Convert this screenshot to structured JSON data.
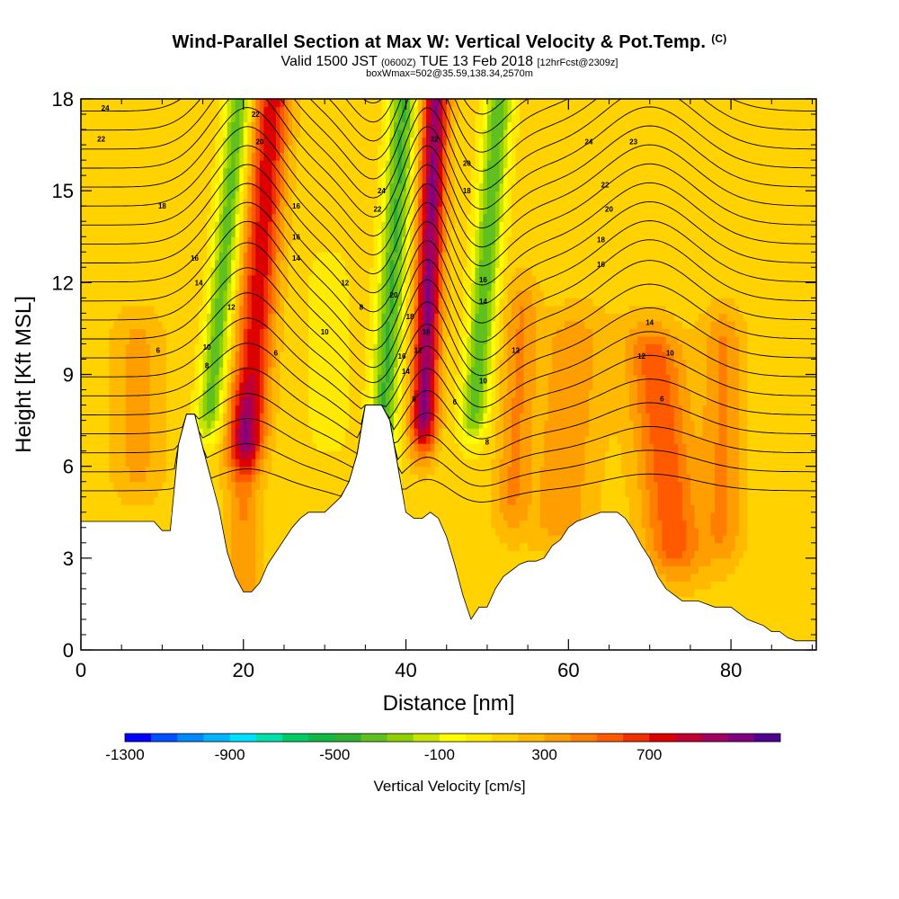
{
  "header": {
    "title_main": "Wind-Parallel Section at Max W: Vertical Velocity & Pot.Temp.",
    "title_copyright": "(C)",
    "subtitle_valid": "Valid 1500 JST",
    "subtitle_utc": "(0600Z)",
    "subtitle_date": "TUE 13 Feb 2018",
    "subtitle_fcst": "[12hrFcst@2309z]",
    "box_info": "boxWmax=502@35.59,138.34,2570m"
  },
  "chart_data": {
    "type": "heatmap",
    "xlabel": "Distance [nm]",
    "ylabel": "Height [Kft MSL]",
    "xlim": [
      0,
      90.5
    ],
    "ylim": [
      0,
      18
    ],
    "x_ticks": [
      "0",
      "20",
      "40",
      "60",
      "80"
    ],
    "x_tick_values": [
      0,
      20,
      40,
      60,
      80
    ],
    "y_ticks": [
      "0",
      "3",
      "6",
      "9",
      "12",
      "15",
      "18"
    ],
    "y_tick_values": [
      0,
      3,
      6,
      9,
      12,
      15,
      18
    ],
    "colorbar": {
      "label": "Vertical Velocity [cm/s]",
      "min": -1300,
      "step": 100,
      "tick_labels": [
        "-1300",
        "-900",
        "-500",
        "-100",
        "300",
        "700"
      ],
      "tick_values": [
        -1300,
        -900,
        -500,
        -100,
        300,
        700
      ],
      "colors": [
        "#0000ff",
        "#0050ff",
        "#0088ff",
        "#00b4ff",
        "#00e0ff",
        "#00e0a8",
        "#00cc66",
        "#10b844",
        "#30b030",
        "#60c020",
        "#90d000",
        "#c8e400",
        "#ffff00",
        "#ffea00",
        "#ffd200",
        "#ffba00",
        "#ff9e00",
        "#ff7e00",
        "#ff5a00",
        "#f03000",
        "#dc0000",
        "#c00030",
        "#a00060",
        "#800080",
        "#500090"
      ]
    },
    "terrain": {
      "x": [
        0,
        9,
        10,
        11,
        12,
        13,
        14,
        15,
        16,
        17,
        18,
        19,
        20,
        21,
        22,
        23,
        24,
        25,
        26,
        27,
        28,
        30,
        32,
        33,
        34,
        35,
        36,
        37,
        38,
        39,
        40,
        41,
        42,
        43,
        44,
        45,
        46,
        47,
        48,
        49,
        50,
        51,
        52,
        53,
        54,
        55,
        56,
        57,
        58,
        59,
        60,
        61,
        62,
        64,
        66,
        67,
        68,
        69,
        70,
        71,
        72,
        73,
        74,
        75,
        76,
        78,
        80,
        81,
        82,
        83,
        84,
        85,
        86,
        87,
        88,
        89,
        90.5
      ],
      "height": [
        4.2,
        4.2,
        3.9,
        3.9,
        6.7,
        7.7,
        7.7,
        6.6,
        5.6,
        4.6,
        3.2,
        2.4,
        1.9,
        1.9,
        2.2,
        2.8,
        3.2,
        3.6,
        4.0,
        4.3,
        4.5,
        4.5,
        5.0,
        5.5,
        6.4,
        8.0,
        8.0,
        8.0,
        7.5,
        6.0,
        4.5,
        4.3,
        4.3,
        4.5,
        4.3,
        3.7,
        2.8,
        1.8,
        1.0,
        1.4,
        1.4,
        2.0,
        2.4,
        2.6,
        2.8,
        2.9,
        2.9,
        3.0,
        3.4,
        3.6,
        4.0,
        4.2,
        4.3,
        4.5,
        4.5,
        4.3,
        3.9,
        3.4,
        3.0,
        2.4,
        2.0,
        1.8,
        1.6,
        1.6,
        1.6,
        1.4,
        1.4,
        1.2,
        1.0,
        0.9,
        0.8,
        0.6,
        0.6,
        0.4,
        0.3,
        0.3,
        0.3
      ]
    },
    "velocity_features": [
      {
        "x": 16,
        "z_bottom": 8,
        "z_top": 18,
        "tilt": 0.35,
        "width": 1.6,
        "w": -500
      },
      {
        "x": 20.5,
        "z_bottom": 7,
        "z_top": 18,
        "tilt": 0.28,
        "width": 2.2,
        "w": 620
      },
      {
        "x": 36.8,
        "z_bottom": 5.8,
        "z_top": 18,
        "tilt": 0.24,
        "width": 1.7,
        "w": -560
      },
      {
        "x": 42.2,
        "z_bottom": 7.6,
        "z_top": 18,
        "tilt": 0.14,
        "width": 1.6,
        "w": 860
      },
      {
        "x": 48.5,
        "z_bottom": 8,
        "z_top": 18,
        "tilt": 0.3,
        "width": 1.7,
        "w": -520
      },
      {
        "x": 53,
        "z_bottom": 5,
        "z_top": 11,
        "tilt": 0.2,
        "width": 2.0,
        "w": 250
      },
      {
        "x": 20,
        "z_bottom": 2.5,
        "z_top": 7.5,
        "tilt": 0.0,
        "width": 2.0,
        "w": 250
      },
      {
        "x": 73,
        "z_bottom": 3.5,
        "z_top": 9.5,
        "tilt": -0.4,
        "width": 3.5,
        "w": 420
      },
      {
        "x": 79,
        "z_bottom": 4,
        "z_top": 10,
        "tilt": 0.0,
        "width": 2.5,
        "w": 260
      },
      {
        "x": 30.5,
        "z_bottom": 7.5,
        "z_top": 12,
        "tilt": 0.0,
        "width": 2.5,
        "w": -120
      },
      {
        "x": 59,
        "z_bottom": 4.5,
        "z_top": 10,
        "tilt": 0.3,
        "width": 4.0,
        "w": 220
      },
      {
        "x": 7,
        "z_bottom": 6,
        "z_top": 10,
        "tilt": 0.0,
        "width": 3.0,
        "w": 180
      }
    ],
    "potential_temperature": {
      "contour_interval": 1,
      "label_values": [
        "6",
        "8",
        "10",
        "12",
        "14",
        "16",
        "18",
        "20",
        "22",
        "24"
      ],
      "labels": [
        {
          "x": 3,
          "z": 17.7,
          "text": "24"
        },
        {
          "x": 2.5,
          "z": 16.7,
          "text": "22"
        },
        {
          "x": 10,
          "z": 14.5,
          "text": "18"
        },
        {
          "x": 21.5,
          "z": 17.5,
          "text": "22"
        },
        {
          "x": 22,
          "z": 16.6,
          "text": "20"
        },
        {
          "x": 14,
          "z": 12.8,
          "text": "16"
        },
        {
          "x": 14.5,
          "z": 12.0,
          "text": "14"
        },
        {
          "x": 18.5,
          "z": 11.2,
          "text": "12"
        },
        {
          "x": 15.5,
          "z": 9.9,
          "text": "10"
        },
        {
          "x": 15.5,
          "z": 9.3,
          "text": "8"
        },
        {
          "x": 9.5,
          "z": 9.8,
          "text": "6"
        },
        {
          "x": 26.5,
          "z": 14.5,
          "text": "16"
        },
        {
          "x": 26.5,
          "z": 13.5,
          "text": "16"
        },
        {
          "x": 26.5,
          "z": 12.8,
          "text": "14"
        },
        {
          "x": 32.5,
          "z": 12.0,
          "text": "12"
        },
        {
          "x": 30,
          "z": 10.4,
          "text": "10"
        },
        {
          "x": 34.5,
          "z": 11.2,
          "text": "8"
        },
        {
          "x": 24,
          "z": 9.7,
          "text": "6"
        },
        {
          "x": 37,
          "z": 15.0,
          "text": "24"
        },
        {
          "x": 36.5,
          "z": 14.4,
          "text": "22"
        },
        {
          "x": 38.5,
          "z": 11.6,
          "text": "20"
        },
        {
          "x": 43.5,
          "z": 16.7,
          "text": "22"
        },
        {
          "x": 47.5,
          "z": 15.9,
          "text": "20"
        },
        {
          "x": 47.5,
          "z": 15.0,
          "text": "18"
        },
        {
          "x": 40.5,
          "z": 10.9,
          "text": "18"
        },
        {
          "x": 42.5,
          "z": 10.4,
          "text": "16"
        },
        {
          "x": 39.5,
          "z": 9.6,
          "text": "16"
        },
        {
          "x": 41.5,
          "z": 9.8,
          "text": "12"
        },
        {
          "x": 40,
          "z": 9.1,
          "text": "14"
        },
        {
          "x": 41,
          "z": 8.2,
          "text": "8"
        },
        {
          "x": 46,
          "z": 8.1,
          "text": "6"
        },
        {
          "x": 49.5,
          "z": 12.1,
          "text": "16"
        },
        {
          "x": 49.5,
          "z": 11.4,
          "text": "14"
        },
        {
          "x": 49.5,
          "z": 8.8,
          "text": "10"
        },
        {
          "x": 53.5,
          "z": 9.8,
          "text": "12"
        },
        {
          "x": 50,
          "z": 6.8,
          "text": "8"
        },
        {
          "x": 62.5,
          "z": 16.6,
          "text": "24"
        },
        {
          "x": 68,
          "z": 16.6,
          "text": "23"
        },
        {
          "x": 64.5,
          "z": 15.2,
          "text": "22"
        },
        {
          "x": 65,
          "z": 14.4,
          "text": "20"
        },
        {
          "x": 64,
          "z": 13.4,
          "text": "18"
        },
        {
          "x": 64,
          "z": 12.6,
          "text": "16"
        },
        {
          "x": 70,
          "z": 10.7,
          "text": "14"
        },
        {
          "x": 69,
          "z": 9.6,
          "text": "12"
        },
        {
          "x": 72.5,
          "z": 9.7,
          "text": "10"
        },
        {
          "x": 71.5,
          "z": 8.2,
          "text": "6"
        }
      ]
    },
    "grid": false
  }
}
